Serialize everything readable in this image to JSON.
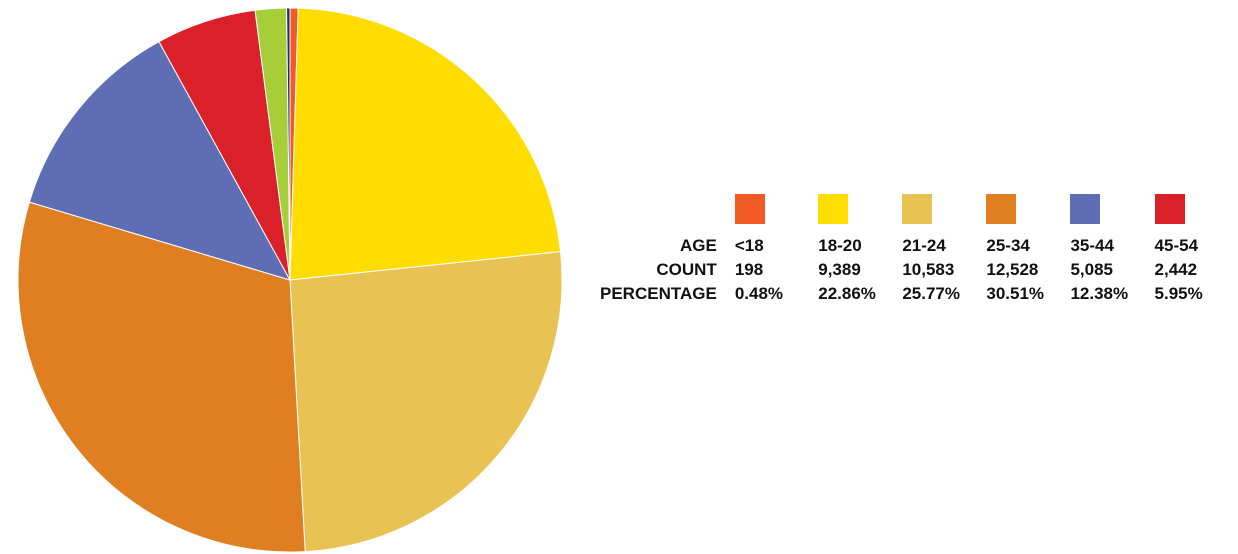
{
  "chart_data": {
    "type": "pie",
    "legend_position": "right",
    "row_labels": {
      "age": "AGE",
      "count": "COUNT",
      "percentage": "PERCENTAGE"
    },
    "slices": [
      {
        "age": "<18",
        "count": "198",
        "percentage": "0.48%",
        "value": 0.48,
        "color": "#F15A24"
      },
      {
        "age": "18-20",
        "count": "9,389",
        "percentage": "22.86%",
        "value": 22.86,
        "color": "#FFDD00"
      },
      {
        "age": "21-24",
        "count": "10,583",
        "percentage": "25.77%",
        "value": 25.77,
        "color": "#E8C252"
      },
      {
        "age": "25-34",
        "count": "12,528",
        "percentage": "30.51%",
        "value": 30.51,
        "color": "#E07E22"
      },
      {
        "age": "35-44",
        "count": "5,085",
        "percentage": "12.38%",
        "value": 12.38,
        "color": "#5E6DB4"
      },
      {
        "age": "45-54",
        "count": "2,442",
        "percentage": "5.95%",
        "value": 5.95,
        "color": "#DA2129"
      }
    ],
    "unlabeled_slices": [
      {
        "value": 1.85,
        "color": "#A6CE39"
      },
      {
        "value": 0.2,
        "color": "#1D2A6B"
      }
    ]
  }
}
